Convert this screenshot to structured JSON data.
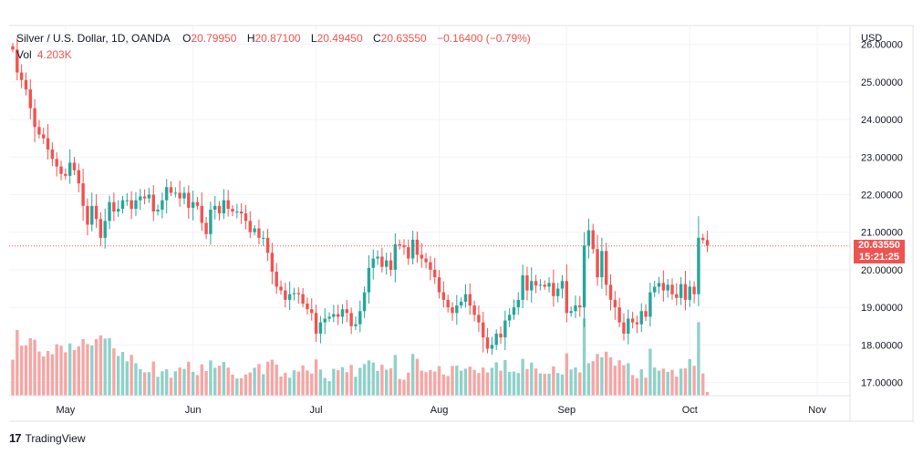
{
  "legend": {
    "symbol": "Silver / U.S. Dollar, 1D, OANDA",
    "o_label": "O",
    "o_value": "20.79950",
    "h_label": "H",
    "h_value": "20.87100",
    "l_label": "L",
    "l_value": "20.49450",
    "c_label": "C",
    "c_value": "20.63550",
    "change": "−0.16400 (−0.79%)",
    "vol_label": "Vol",
    "vol_value": "4.203K"
  },
  "price_badge": {
    "price": "20.63550",
    "countdown": "15:21:25"
  },
  "branding": {
    "icon": "17",
    "name": "TradingView"
  },
  "colors": {
    "up": "#26a69a",
    "down": "#ef5350",
    "vol_up": "#8fd1c9",
    "vol_down": "#f5a6a5",
    "grid": "#f0f3fa"
  },
  "chart_data": {
    "type": "candlestick",
    "title": "Silver / U.S. Dollar, 1D, OANDA",
    "currency": "USD",
    "y_range": [
      16.65,
      26.5
    ],
    "y_ticks": [
      "26.00000",
      "25.00000",
      "24.00000",
      "23.00000",
      "22.00000",
      "21.00000",
      "20.00000",
      "19.00000",
      "18.00000",
      "17.00000"
    ],
    "y_tick_values": [
      26,
      25,
      24,
      23,
      22,
      21,
      20,
      19,
      18,
      17
    ],
    "x_labels": [
      "May",
      "Jun",
      "Jul",
      "Aug",
      "Sep",
      "Oct",
      "Nov"
    ],
    "x_label_index": [
      12,
      41,
      69,
      97,
      126,
      154,
      183
    ],
    "last_price": 20.6355,
    "closes": [
      25.86,
      25.25,
      25.05,
      24.8,
      24.3,
      23.8,
      23.6,
      23.5,
      23.2,
      22.95,
      22.75,
      22.55,
      22.5,
      22.85,
      22.65,
      22.3,
      21.7,
      21.2,
      21.7,
      21.35,
      20.85,
      21.3,
      21.8,
      21.55,
      21.62,
      21.85,
      21.85,
      21.62,
      21.85,
      21.95,
      21.9,
      22.0,
      21.55,
      21.6,
      21.85,
      22.2,
      22.05,
      22.05,
      21.9,
      22.05,
      21.65,
      21.8,
      21.7,
      21.25,
      20.95,
      21.6,
      21.7,
      21.5,
      21.85,
      21.62,
      21.55,
      21.55,
      21.5,
      21.3,
      21.0,
      21.1,
      20.85,
      20.85,
      20.45,
      19.95,
      19.55,
      19.45,
      19.2,
      19.35,
      19.38,
      19.35,
      19.1,
      18.95,
      18.85,
      18.3,
      18.6,
      18.7,
      18.75,
      18.82,
      18.75,
      18.95,
      18.85,
      18.5,
      18.55,
      18.9,
      19.4,
      20.05,
      20.3,
      20.35,
      20.08,
      20.25,
      20.0,
      20.68,
      20.65,
      20.6,
      20.3,
      20.8,
      20.4,
      20.3,
      20.2,
      20.0,
      19.8,
      19.4,
      19.2,
      19.0,
      18.85,
      19.05,
      19.15,
      19.35,
      19.05,
      18.8,
      18.6,
      18.2,
      17.9,
      18.0,
      18.3,
      18.2,
      18.65,
      18.8,
      19.0,
      19.2,
      19.85,
      19.45,
      19.7,
      19.58,
      19.6,
      19.55,
      19.65,
      19.3,
      19.5,
      19.7,
      18.85,
      18.9,
      19.05,
      19.0,
      20.65,
      21.05,
      20.55,
      19.8,
      20.5,
      19.6,
      19.2,
      19.0,
      18.6,
      18.3,
      18.7,
      18.6,
      18.55,
      18.9,
      18.75,
      19.4,
      19.55,
      19.65,
      19.45,
      19.6,
      19.35,
      19.25,
      19.62,
      19.2,
      19.55,
      19.35,
      20.85,
      20.79,
      20.64
    ],
    "volume_unit": "relative"
  }
}
